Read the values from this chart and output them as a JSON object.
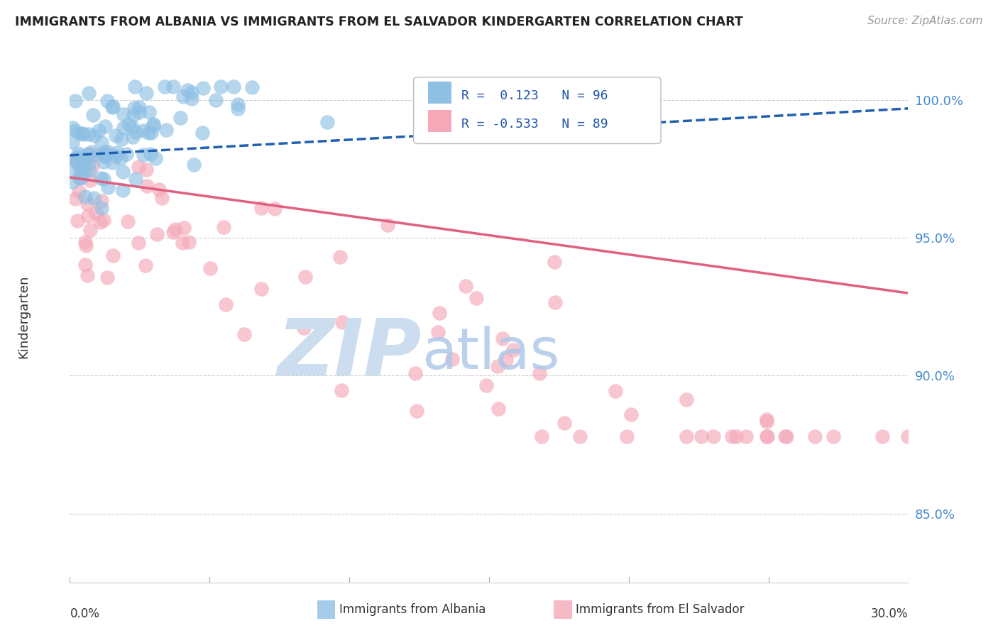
{
  "title": "IMMIGRANTS FROM ALBANIA VS IMMIGRANTS FROM EL SALVADOR KINDERGARTEN CORRELATION CHART",
  "source": "Source: ZipAtlas.com",
  "ylabel": "Kindergarten",
  "ytick_labels": [
    "85.0%",
    "90.0%",
    "95.0%",
    "100.0%"
  ],
  "ytick_values": [
    0.85,
    0.9,
    0.95,
    1.0
  ],
  "xlim": [
    0.0,
    0.3
  ],
  "ylim": [
    0.825,
    1.018
  ],
  "legend_albania_R": "0.123",
  "legend_albania_N": "96",
  "legend_salvador_R": "-0.533",
  "legend_salvador_N": "89",
  "albania_color": "#8ec0e4",
  "salvador_color": "#f4a8b8",
  "albania_line_color": "#2060b0",
  "salvador_line_color": "#e06080",
  "albania_line_style": "--",
  "salvador_line_style": "-"
}
